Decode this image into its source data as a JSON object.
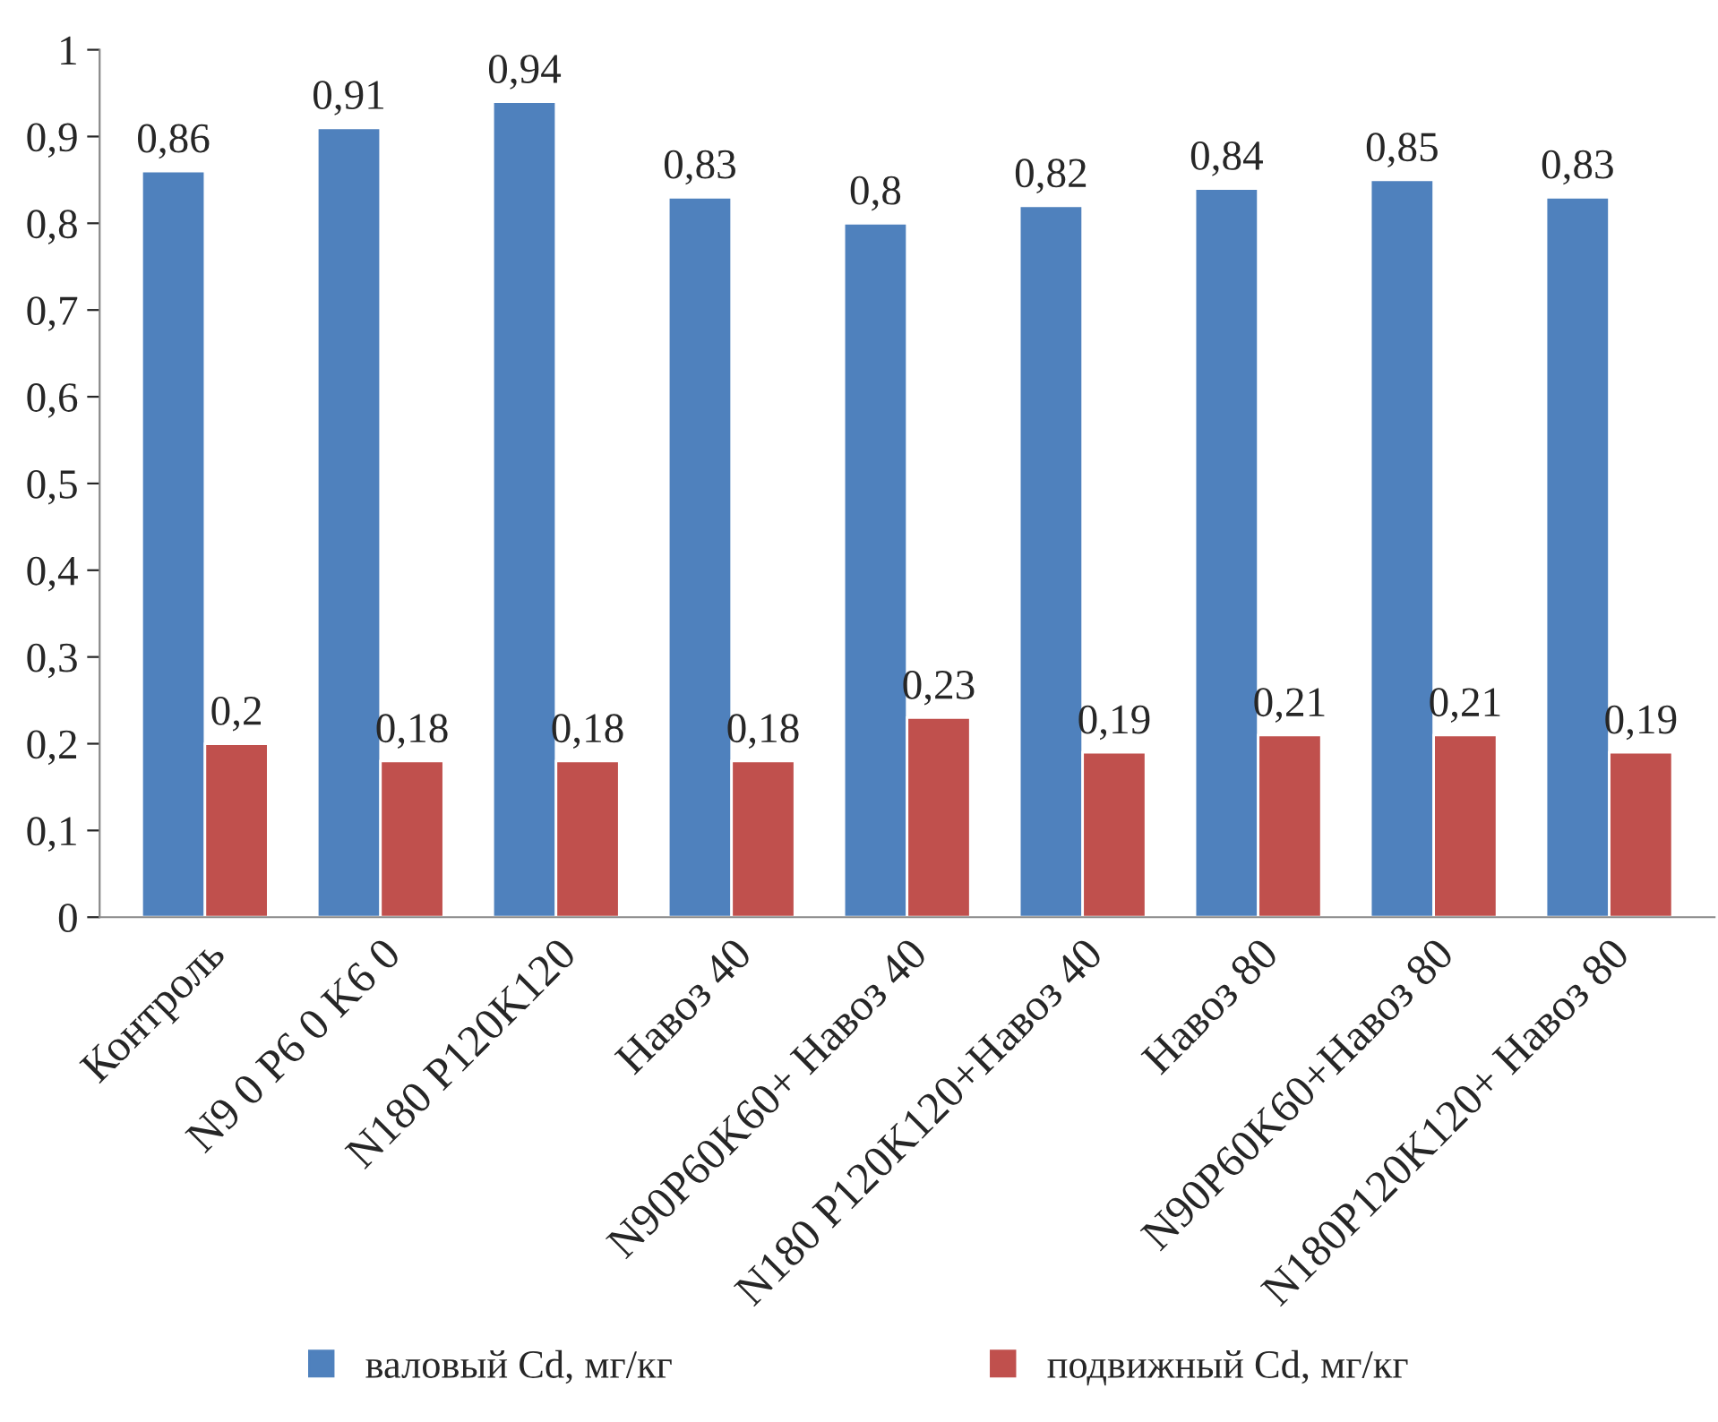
{
  "chart_data": {
    "type": "bar",
    "categories": [
      "Контроль",
      "N9 0 P6 0 K6 0",
      "N180 P120K120",
      "Навоз 40",
      "N90P60K60+ Навоз 40",
      "N180 P120K120+Навоз 40",
      "Навоз 80",
      "N90P60K60+Навоз 80",
      "N180P120K120+ Навоз 80"
    ],
    "series": [
      {
        "name": "валовый Cd, мг/кг",
        "color": "#4f81bd",
        "values": [
          0.86,
          0.91,
          0.94,
          0.83,
          0.8,
          0.82,
          0.84,
          0.85,
          0.83
        ],
        "value_labels": [
          "0,86",
          "0,91",
          "0,94",
          "0,83",
          "0,8",
          "0,82",
          "0,84",
          "0,85",
          "0,83"
        ]
      },
      {
        "name": "подвижный Cd, мг/кг",
        "color": "#c0504d",
        "values": [
          0.2,
          0.18,
          0.18,
          0.18,
          0.23,
          0.19,
          0.21,
          0.21,
          0.19
        ],
        "value_labels": [
          "0,2",
          "0,18",
          "0,18",
          "0,18",
          "0,23",
          "0,19",
          "0,21",
          "0,21",
          "0,19"
        ]
      }
    ],
    "ylim": [
      0,
      1
    ],
    "yticks": [
      0,
      {
        "value": 0.1,
        "label": "0,1"
      },
      {
        "value": 0.2,
        "label": "0,2"
      },
      {
        "value": 0.3,
        "label": "0,3"
      },
      {
        "value": 0.4,
        "label": "0,4"
      },
      {
        "value": 0.5,
        "label": "0,5"
      },
      {
        "value": 0.6,
        "label": "0,6"
      },
      {
        "value": 0.7,
        "label": "0,7"
      },
      {
        "value": 0.8,
        "label": "0,8"
      },
      {
        "value": 0.9,
        "label": "0,9"
      },
      1
    ],
    "grid": false,
    "legend": "bottom"
  }
}
